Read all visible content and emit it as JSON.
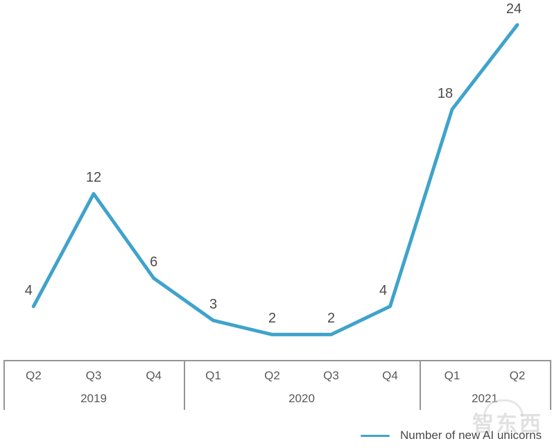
{
  "chart_data": {
    "type": "line",
    "title": "",
    "groups": [
      {
        "year": "2019",
        "quarters": [
          "Q2",
          "Q3",
          "Q4"
        ]
      },
      {
        "year": "2020",
        "quarters": [
          "Q1",
          "Q2",
          "Q3",
          "Q4"
        ]
      },
      {
        "year": "2021",
        "quarters": [
          "Q1",
          "Q2"
        ]
      }
    ],
    "categories": [
      "Q2 2019",
      "Q3 2019",
      "Q4 2019",
      "Q1 2020",
      "Q2 2020",
      "Q3 2020",
      "Q4 2020",
      "Q1 2021",
      "Q2 2021"
    ],
    "series": [
      {
        "name": "Number of new AI unicorns",
        "values": [
          4,
          12,
          6,
          3,
          2,
          2,
          4,
          18,
          24
        ]
      }
    ],
    "data_labels": [
      "4",
      "12",
      "6",
      "3",
      "2",
      "2",
      "4",
      "18",
      "24"
    ],
    "ylim": [
      0,
      25
    ],
    "grid": false,
    "legend_position": "bottom-right",
    "line_color": "#3fa3cb",
    "label_dx": [
      -7,
      0,
      0,
      0,
      0,
      0,
      -10,
      -10,
      -5
    ]
  },
  "legend": {
    "label": "Number of new AI unicorns"
  },
  "watermark": {
    "text": "智东西"
  },
  "colors": {
    "line": "#3fa3cb",
    "data_label_text": "#4e4a47",
    "axis_text": "#57585a",
    "table_border": "#949494",
    "legend_text": "#4a4a4c",
    "watermark": "#c9c9c9",
    "background": "#ffffff"
  }
}
